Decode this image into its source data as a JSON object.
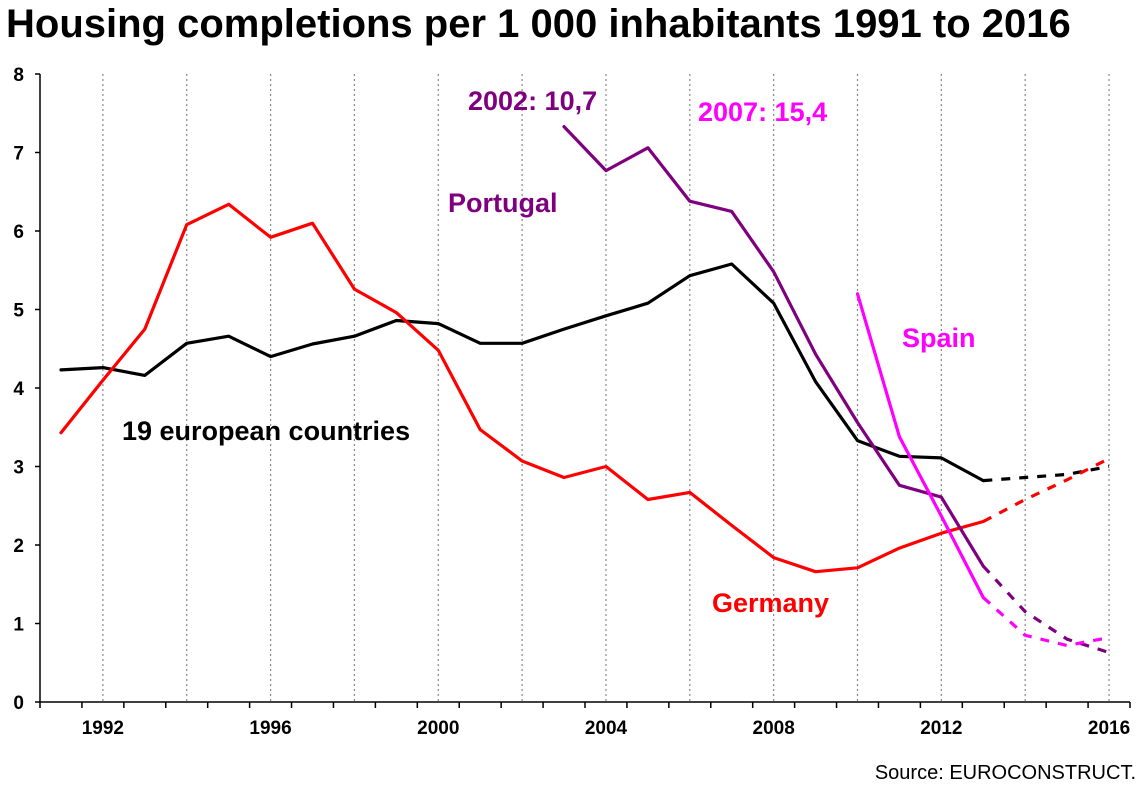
{
  "chart_data": {
    "type": "line",
    "title": "Housing completions per 1 000 inhabitants 1991 to 2016",
    "source": "Source: EUROCONSTRUCT.",
    "xlabel": "",
    "ylabel": "",
    "xlim": [
      1990.5,
      2016.5
    ],
    "ylim": [
      0,
      8
    ],
    "x_ticks": [
      1992,
      1996,
      2000,
      2004,
      2008,
      2012,
      2016
    ],
    "y_ticks": [
      0,
      1,
      2,
      3,
      4,
      5,
      6,
      7,
      8
    ],
    "grid": "vertical dotted",
    "legend": "none (series labeled directly on chart)",
    "series": [
      {
        "name": "19 european countries",
        "color": "#000000",
        "points": [
          [
            1991,
            4.23
          ],
          [
            1992,
            4.26
          ],
          [
            1993,
            4.16
          ],
          [
            1994,
            4.57
          ],
          [
            1995,
            4.66
          ],
          [
            1996,
            4.4
          ],
          [
            1997,
            4.56
          ],
          [
            1998,
            4.66
          ],
          [
            1999,
            4.86
          ],
          [
            2000,
            4.82
          ],
          [
            2001,
            4.57
          ],
          [
            2002,
            4.57
          ],
          [
            2003,
            4.75
          ],
          [
            2004,
            4.92
          ],
          [
            2005,
            5.08
          ],
          [
            2006,
            5.43
          ],
          [
            2007,
            5.58
          ],
          [
            2008,
            5.08
          ],
          [
            2009,
            4.08
          ],
          [
            2010,
            3.33
          ],
          [
            2011,
            3.13
          ],
          [
            2012,
            3.11
          ],
          [
            2013,
            2.82
          ]
        ],
        "forecast": [
          [
            2013,
            2.82
          ],
          [
            2014,
            2.86
          ],
          [
            2015,
            2.9
          ],
          [
            2016,
            3.0
          ]
        ]
      },
      {
        "name": "Germany",
        "color": "#ff0000",
        "points": [
          [
            1991,
            3.43
          ],
          [
            1992,
            4.1
          ],
          [
            1993,
            4.75
          ],
          [
            1994,
            6.08
          ],
          [
            1995,
            6.34
          ],
          [
            1996,
            5.92
          ],
          [
            1997,
            6.1
          ],
          [
            1998,
            5.26
          ],
          [
            1999,
            4.96
          ],
          [
            2000,
            4.48
          ],
          [
            2001,
            3.47
          ],
          [
            2002,
            3.07
          ],
          [
            2003,
            2.86
          ],
          [
            2004,
            3.0
          ],
          [
            2005,
            2.58
          ],
          [
            2006,
            2.67
          ],
          [
            2007,
            2.25
          ],
          [
            2008,
            1.84
          ],
          [
            2009,
            1.66
          ],
          [
            2010,
            1.71
          ],
          [
            2011,
            1.96
          ],
          [
            2012,
            2.15
          ],
          [
            2013,
            2.3
          ]
        ],
        "forecast": [
          [
            2013,
            2.3
          ],
          [
            2014,
            2.58
          ],
          [
            2015,
            2.83
          ],
          [
            2016,
            3.1
          ]
        ]
      },
      {
        "name": "Portugal",
        "color": "#7f007f",
        "points": [
          [
            2003,
            7.33
          ],
          [
            2004,
            6.77
          ],
          [
            2005,
            7.06
          ],
          [
            2006,
            6.38
          ],
          [
            2007,
            6.25
          ],
          [
            2008,
            5.48
          ],
          [
            2009,
            4.43
          ],
          [
            2010,
            3.56
          ],
          [
            2011,
            2.76
          ],
          [
            2012,
            2.61
          ],
          [
            2013,
            1.73
          ]
        ],
        "forecast": [
          [
            2013,
            1.73
          ],
          [
            2014,
            1.15
          ],
          [
            2015,
            0.8
          ],
          [
            2016,
            0.63
          ]
        ]
      },
      {
        "name": "Spain",
        "color": "#ff00ff",
        "points": [
          [
            2010,
            5.2
          ],
          [
            2011,
            3.38
          ],
          [
            2012,
            2.37
          ],
          [
            2013,
            1.33
          ]
        ],
        "forecast": [
          [
            2013,
            1.33
          ],
          [
            2014,
            0.85
          ],
          [
            2015,
            0.72
          ],
          [
            2016,
            0.82
          ]
        ]
      }
    ],
    "annotations": [
      {
        "text": "19 european countries",
        "color": "#000000"
      },
      {
        "text": "Germany",
        "color": "#ff0000"
      },
      {
        "text": "Portugal",
        "color": "#7f007f"
      },
      {
        "text": "Spain",
        "color": "#ff00ff"
      },
      {
        "text": "2002: 10,7",
        "color": "#7f007f"
      },
      {
        "text": "2007: 15,4",
        "color": "#ff00ff"
      }
    ]
  }
}
